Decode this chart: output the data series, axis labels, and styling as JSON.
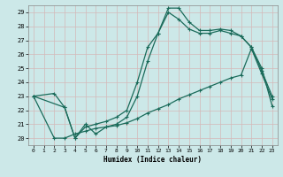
{
  "xlabel": "Humidex (Indice chaleur)",
  "xlim": [
    -0.5,
    23.5
  ],
  "ylim": [
    19.5,
    29.5
  ],
  "xticks": [
    0,
    1,
    2,
    3,
    4,
    5,
    6,
    7,
    8,
    9,
    10,
    11,
    12,
    13,
    14,
    15,
    16,
    17,
    18,
    19,
    20,
    21,
    22,
    23
  ],
  "yticks": [
    20,
    21,
    22,
    23,
    24,
    25,
    26,
    27,
    28,
    29
  ],
  "background_color": "#cce8e8",
  "grid_color": "#b8d8d8",
  "line_color": "#1a6b5a",
  "line1_x": [
    0,
    2,
    3,
    4,
    5,
    6,
    7,
    8,
    9,
    10,
    11,
    12,
    13,
    14,
    15,
    16,
    17,
    18,
    19,
    20,
    21,
    22,
    23
  ],
  "line1_y": [
    23,
    23.2,
    22.2,
    20.0,
    20.8,
    21.0,
    21.2,
    21.5,
    22.0,
    24.0,
    26.5,
    27.5,
    29.3,
    29.3,
    28.3,
    27.7,
    27.7,
    27.8,
    27.7,
    27.3,
    26.5,
    24.8,
    23.0
  ],
  "line2_x": [
    0,
    3,
    4,
    5,
    6,
    7,
    8,
    9,
    10,
    11,
    12,
    13,
    14,
    15,
    16,
    17,
    18,
    19,
    20,
    21,
    22,
    23
  ],
  "line2_y": [
    23,
    22.2,
    20.0,
    21.0,
    20.3,
    20.8,
    21.0,
    21.5,
    23.0,
    25.5,
    27.5,
    29.0,
    28.5,
    27.8,
    27.5,
    27.5,
    27.7,
    27.5,
    27.3,
    26.5,
    25.0,
    22.3
  ],
  "line3_x": [
    0,
    2,
    3,
    4,
    5,
    6,
    7,
    8,
    9,
    10,
    11,
    12,
    13,
    14,
    15,
    16,
    17,
    18,
    19,
    20,
    21,
    22,
    23
  ],
  "line3_y": [
    23,
    20.0,
    20.0,
    20.3,
    20.5,
    20.7,
    20.8,
    20.9,
    21.1,
    21.4,
    21.8,
    22.1,
    22.4,
    22.8,
    23.1,
    23.4,
    23.7,
    24.0,
    24.3,
    24.5,
    26.4,
    24.6,
    22.8
  ]
}
